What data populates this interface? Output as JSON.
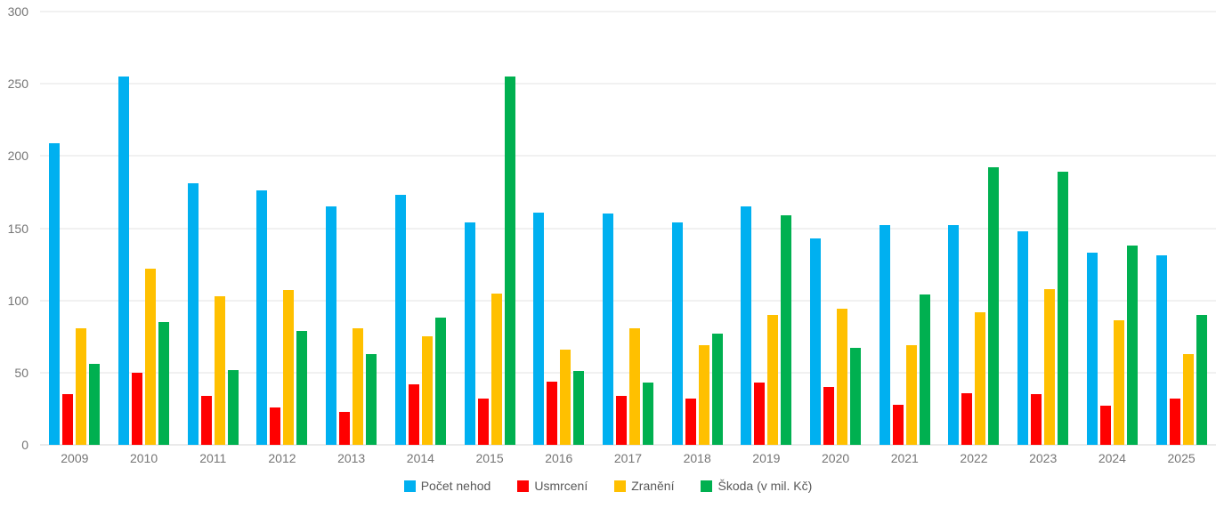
{
  "chart_data": {
    "type": "bar",
    "title": "",
    "xlabel": "",
    "ylabel": "",
    "ylim": [
      0,
      300
    ],
    "y_ticks": [
      0,
      50,
      100,
      150,
      200,
      250,
      300
    ],
    "grid": true,
    "legend_position": "bottom-center",
    "categories": [
      "2009",
      "2010",
      "2011",
      "2012",
      "2013",
      "2014",
      "2015",
      "2016",
      "2017",
      "2018",
      "2019",
      "2020",
      "2021",
      "2022",
      "2023",
      "2024",
      "2025"
    ],
    "series": [
      {
        "name": "Počet nehod",
        "color": "#00b0f0",
        "values": [
          209,
          255,
          181,
          176,
          165,
          173,
          154,
          161,
          160,
          154,
          165,
          143,
          152,
          152,
          148,
          133,
          131
        ]
      },
      {
        "name": "Usmrcení",
        "color": "#ff0000",
        "values": [
          35,
          50,
          34,
          26,
          23,
          42,
          32,
          44,
          34,
          32,
          43,
          40,
          28,
          36,
          35,
          27,
          32
        ]
      },
      {
        "name": "Zranění",
        "color": "#ffc000",
        "values": [
          81,
          122,
          103,
          107,
          81,
          75,
          105,
          66,
          81,
          69,
          90,
          94,
          69,
          92,
          108,
          86,
          63
        ]
      },
      {
        "name": "Škoda (v mil. Kč)",
        "color": "#00b050",
        "values": [
          56,
          85,
          52,
          79,
          63,
          88,
          255,
          51,
          43,
          77,
          159,
          67,
          104,
          192,
          189,
          138,
          90
        ]
      }
    ],
    "style": {
      "gridline_color": "#e3e3e3",
      "baseline_color": "#d6d6d6",
      "tick_label_color": "#757575",
      "legend_label_color": "#595959",
      "background_color": "#ffffff"
    }
  }
}
